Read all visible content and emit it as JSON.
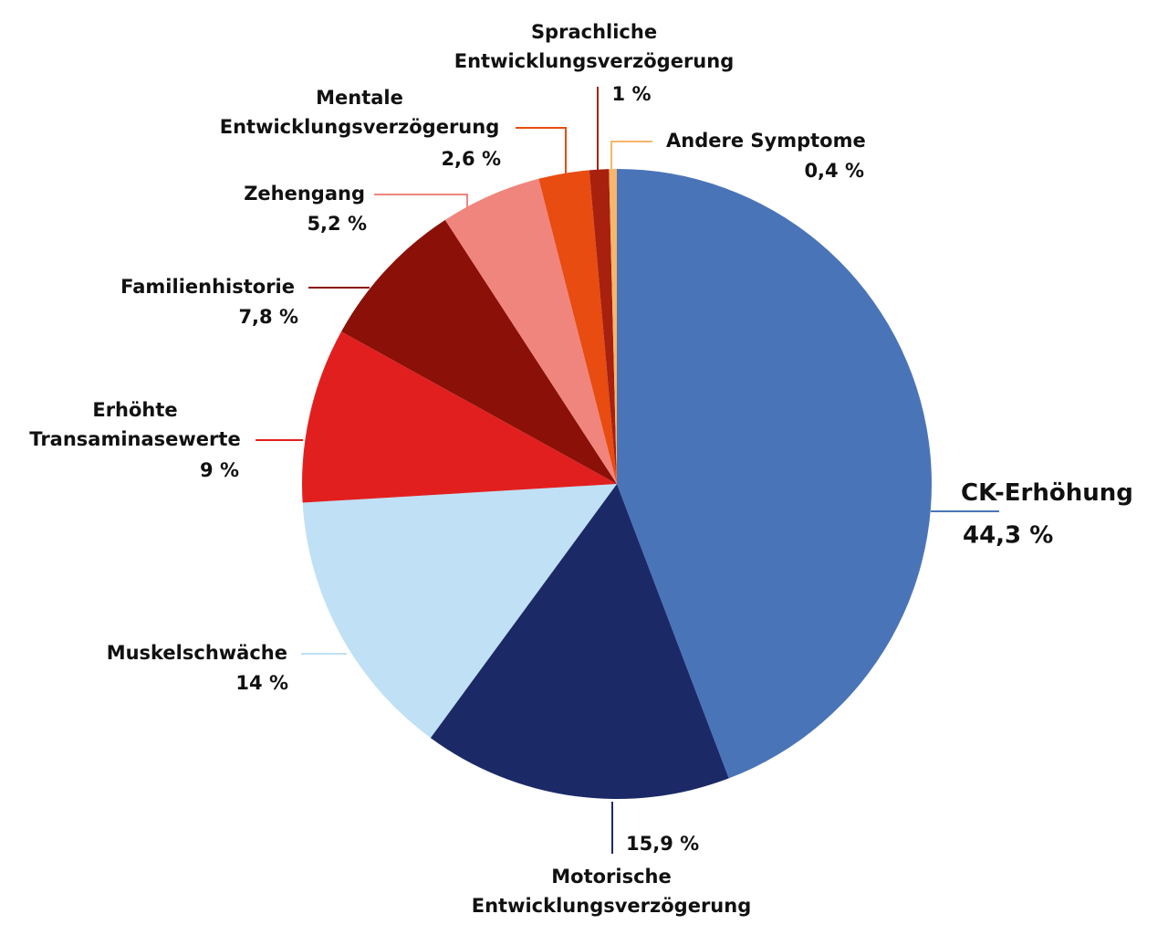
{
  "chart_data": {
    "type": "pie",
    "categories": [
      "CK-Erhöhung",
      "Motorische\nEntwicklungsverzögerung",
      "Muskelschwäche",
      "Erhöhte\nTransaminasewerte",
      "Familienhistorie",
      "Zehengang",
      "Mentale\nEntwicklungsverzögerung",
      "Sprachliche\nEntwicklungsverzögerung",
      "Andere Symptome"
    ],
    "values": [
      44.3,
      15.9,
      14,
      9,
      7.8,
      5.2,
      2.6,
      1,
      0.4
    ],
    "value_labels": [
      "44,3 %",
      "15,9 %",
      "14 %",
      "9 %",
      "7,8 %",
      "5,2 %",
      "2,6 %",
      "1 %",
      "0,4 %"
    ],
    "colors": [
      "#4a74b8",
      "#1b2a66",
      "#c0e0f5",
      "#e21f1f",
      "#8b1008",
      "#f0857e",
      "#e84c10",
      "#a8200e",
      "#f7b66a"
    ]
  }
}
